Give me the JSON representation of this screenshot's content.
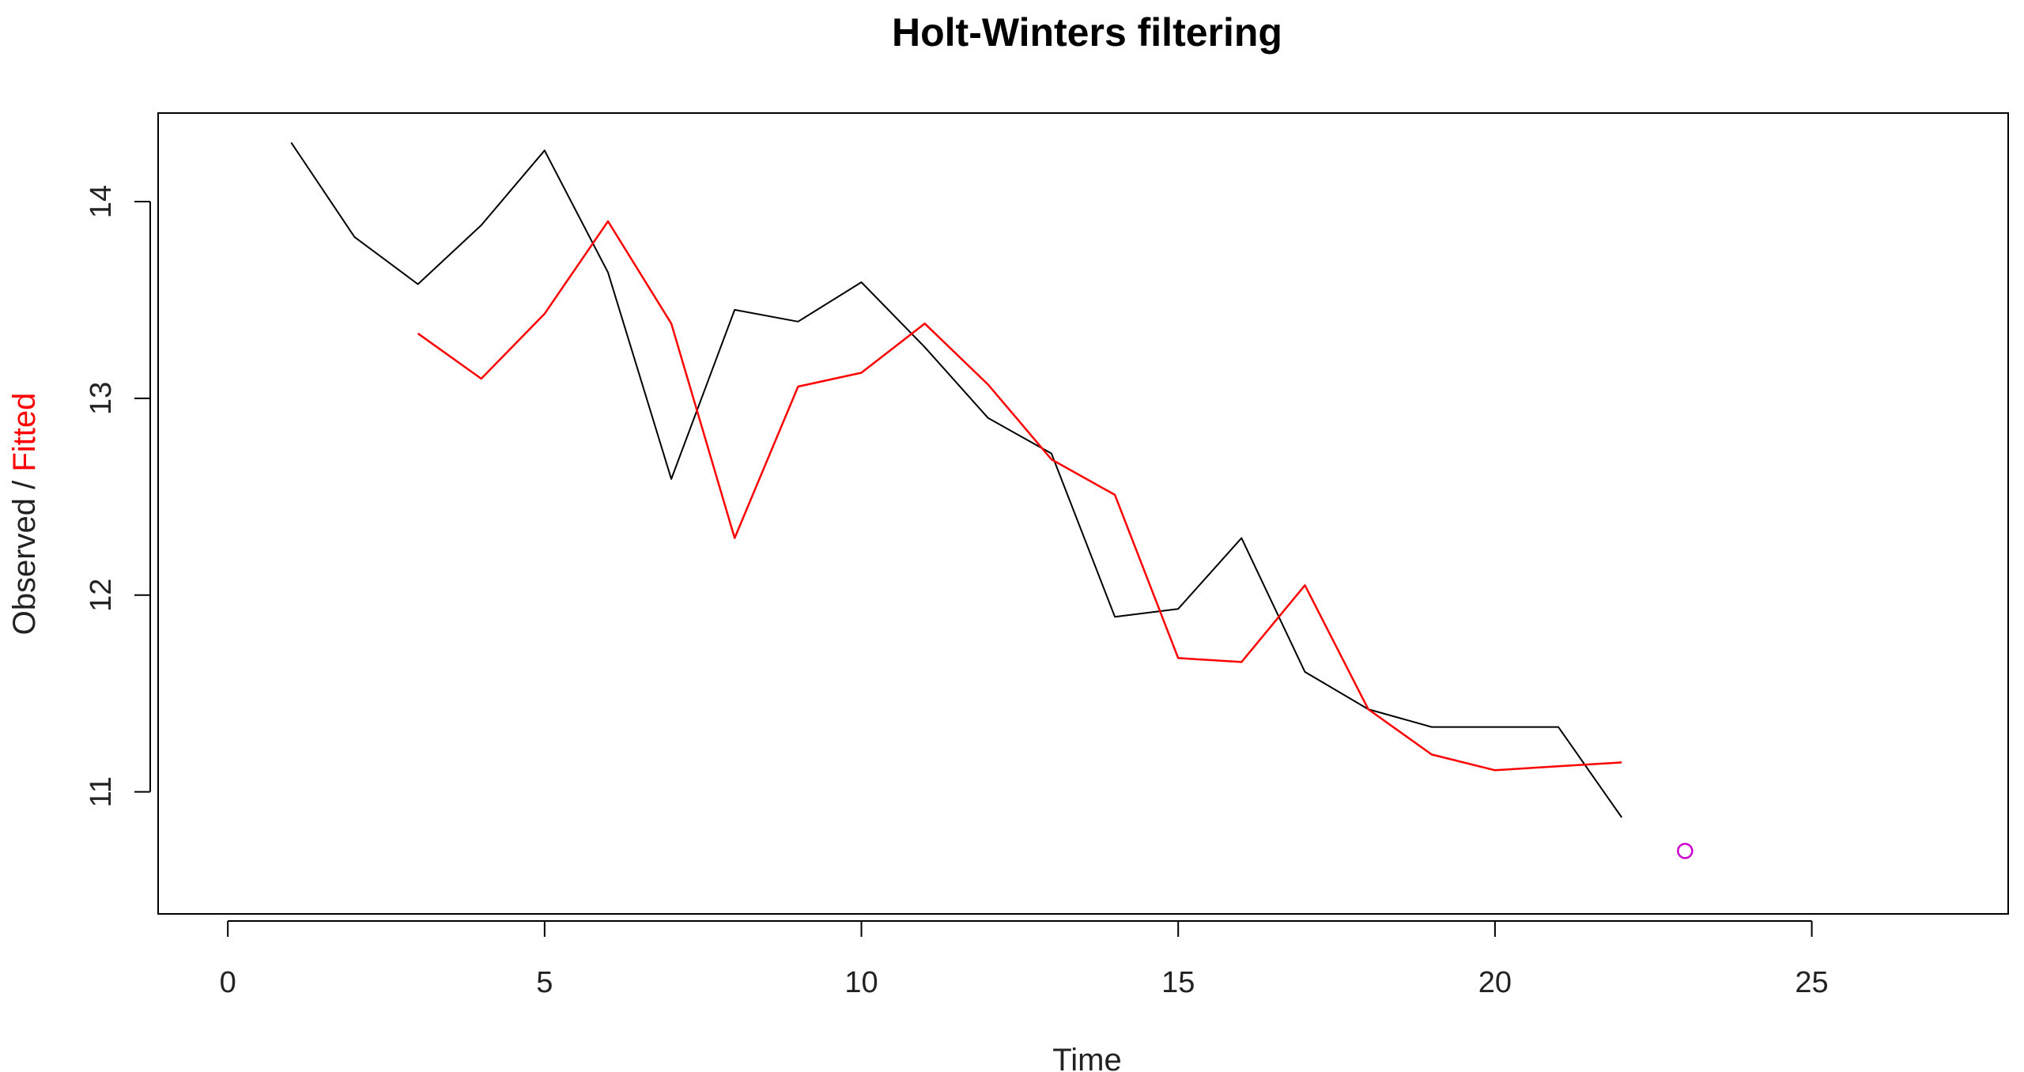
{
  "chart_data": {
    "type": "line",
    "title": "Holt-Winters filtering",
    "xlabel": "Time",
    "ylabel_parts": [
      "Observed",
      " / ",
      "Fitted"
    ],
    "xlim": [
      -1.1,
      28.1
    ],
    "ylim": [
      10.38,
      14.45
    ],
    "x_ticks": [
      0,
      5,
      10,
      15,
      20,
      25
    ],
    "y_ticks": [
      11,
      12,
      13,
      14
    ],
    "grid": false,
    "series": [
      {
        "color": "#000000",
        "x": [
          1,
          2,
          3,
          4,
          5,
          6,
          7,
          8,
          9,
          10,
          11,
          12,
          13,
          14,
          15,
          16,
          17,
          18,
          19,
          20,
          21,
          22
        ],
        "values": [
          14.3,
          13.82,
          13.58,
          13.88,
          14.26,
          13.64,
          12.59,
          13.45,
          13.39,
          13.59,
          13.26,
          12.9,
          12.72,
          11.89,
          11.93,
          12.29,
          11.61,
          11.42,
          11.33,
          11.33,
          11.33,
          10.87
        ]
      },
      {
        "color": "#ff0000",
        "x": [
          3,
          4,
          5,
          6,
          7,
          8,
          9,
          10,
          11,
          12,
          13,
          14,
          15,
          16,
          17,
          18,
          19,
          20,
          21,
          22
        ],
        "values": [
          13.33,
          13.1,
          13.43,
          13.9,
          13.38,
          12.29,
          13.06,
          13.13,
          13.38,
          13.07,
          12.69,
          12.51,
          11.68,
          11.66,
          12.05,
          11.42,
          11.19,
          11.11,
          11.13,
          11.15
        ]
      }
    ],
    "prediction": {
      "color": "#cc00cc",
      "x": 23,
      "value": 10.7
    }
  }
}
